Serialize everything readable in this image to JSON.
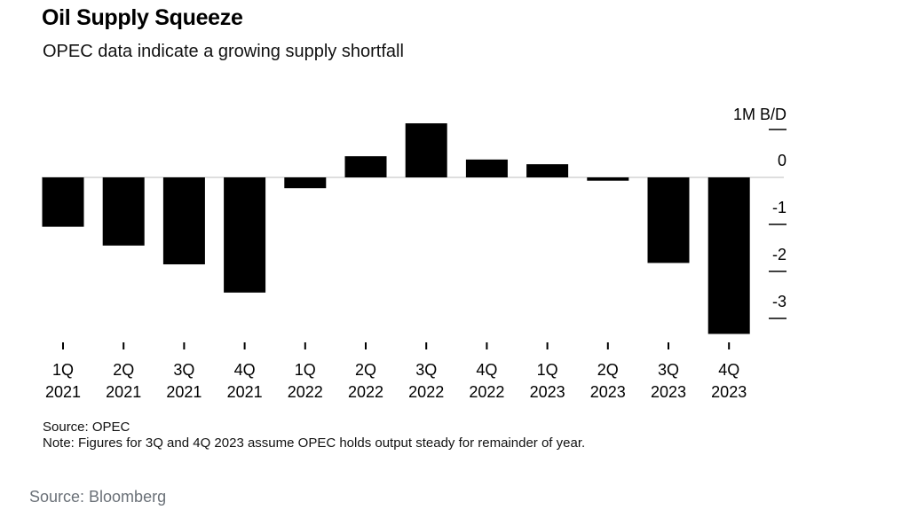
{
  "header": {
    "title": "Oil Supply Squeeze",
    "subtitle": "OPEC data indicate a growing supply shortfall"
  },
  "chart_data": {
    "type": "bar",
    "title": "Oil Supply Squeeze",
    "subtitle": "OPEC data indicate a growing supply shortfall",
    "categories": [
      [
        "1Q",
        "2021"
      ],
      [
        "2Q",
        "2021"
      ],
      [
        "3Q",
        "2021"
      ],
      [
        "4Q",
        "2021"
      ],
      [
        "1Q",
        "2022"
      ],
      [
        "2Q",
        "2022"
      ],
      [
        "3Q",
        "2022"
      ],
      [
        "4Q",
        "2022"
      ],
      [
        "1Q",
        "2023"
      ],
      [
        "2Q",
        "2023"
      ],
      [
        "3Q",
        "2023"
      ],
      [
        "4Q",
        "2023"
      ]
    ],
    "values": [
      -1.05,
      -1.45,
      -1.85,
      -2.45,
      -0.23,
      0.45,
      1.15,
      0.38,
      0.28,
      -0.07,
      -1.82,
      -3.33
    ],
    "ylabel": "1M B/D",
    "yticks": [
      0,
      -1,
      -2,
      -3
    ],
    "ytick_labels": [
      "0",
      "-1",
      "-2",
      "-3"
    ],
    "ylim": [
      -3.4,
      1.3
    ],
    "grid": false,
    "bar_color": "#000000",
    "axis_side": "right"
  },
  "footer": {
    "source": "Source: OPEC",
    "note": "Note: Figures for 3Q and 4Q 2023 assume OPEC holds output steady for remainder of year.",
    "credit": "Source: Bloomberg"
  }
}
